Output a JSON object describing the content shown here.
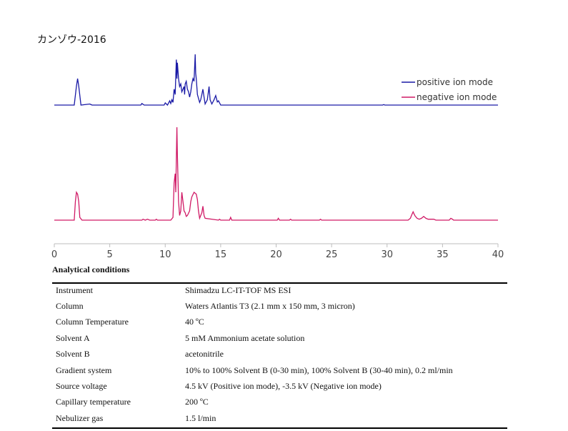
{
  "chart_data": {
    "type": "line",
    "title": "カンゾウ-2016",
    "xlabel": "",
    "ylabel": "",
    "xlim": [
      0,
      40
    ],
    "xticks": [
      0,
      5,
      10,
      15,
      20,
      25,
      30,
      35,
      40
    ],
    "grid": false,
    "legend": "top-right",
    "series": [
      {
        "name": "positive ion mode",
        "color": "#1a1aa6",
        "points": [
          [
            0,
            0
          ],
          [
            1.8,
            0
          ],
          [
            2.0,
            0.36
          ],
          [
            2.1,
            0.5
          ],
          [
            2.2,
            0.36
          ],
          [
            2.4,
            0
          ],
          [
            3.2,
            0.02
          ],
          [
            3.4,
            0
          ],
          [
            7.8,
            0
          ],
          [
            7.9,
            0.03
          ],
          [
            8.1,
            0
          ],
          [
            9.9,
            0
          ],
          [
            10.0,
            0.04
          ],
          [
            10.2,
            0
          ],
          [
            10.4,
            0.08
          ],
          [
            10.5,
            0.03
          ],
          [
            10.6,
            0.1
          ],
          [
            10.7,
            0.05
          ],
          [
            10.8,
            0.3
          ],
          [
            10.9,
            0.2
          ],
          [
            11.0,
            0.86
          ],
          [
            11.05,
            0.5
          ],
          [
            11.1,
            0.8
          ],
          [
            11.2,
            0.5
          ],
          [
            11.3,
            0.35
          ],
          [
            11.4,
            0.4
          ],
          [
            11.5,
            0.25
          ],
          [
            11.6,
            0.3
          ],
          [
            11.7,
            0.35
          ],
          [
            11.75,
            0.2
          ],
          [
            11.8,
            0.4
          ],
          [
            11.9,
            0.45
          ],
          [
            12.0,
            0.3
          ],
          [
            12.1,
            0.25
          ],
          [
            12.2,
            0.15
          ],
          [
            12.3,
            0.25
          ],
          [
            12.4,
            0.4
          ],
          [
            12.5,
            0.5
          ],
          [
            12.6,
            0.45
          ],
          [
            12.7,
            0.96
          ],
          [
            12.75,
            0.6
          ],
          [
            12.8,
            0.5
          ],
          [
            12.9,
            0.2
          ],
          [
            13.1,
            0.05
          ],
          [
            13.2,
            0.1
          ],
          [
            13.3,
            0.2
          ],
          [
            13.4,
            0.3
          ],
          [
            13.5,
            0.15
          ],
          [
            13.6,
            0.02
          ],
          [
            13.8,
            0.1
          ],
          [
            13.95,
            0.35
          ],
          [
            14.05,
            0.1
          ],
          [
            14.2,
            0.02
          ],
          [
            14.4,
            0.1
          ],
          [
            14.55,
            0.18
          ],
          [
            14.7,
            0.06
          ],
          [
            14.8,
            0.08
          ],
          [
            15.0,
            0
          ],
          [
            29.6,
            0
          ],
          [
            29.7,
            0.01
          ],
          [
            29.8,
            0
          ],
          [
            40,
            0
          ]
        ]
      },
      {
        "name": "negative ion mode",
        "color": "#d01a66",
        "points": [
          [
            0,
            0
          ],
          [
            1.8,
            0
          ],
          [
            1.9,
            0.2
          ],
          [
            2.0,
            0.3
          ],
          [
            2.1,
            0.28
          ],
          [
            2.2,
            0.2
          ],
          [
            2.3,
            0.03
          ],
          [
            2.5,
            0
          ],
          [
            7.9,
            0
          ],
          [
            8.0,
            0.01
          ],
          [
            8.2,
            0
          ],
          [
            8.4,
            0.01
          ],
          [
            8.6,
            0
          ],
          [
            9.1,
            0
          ],
          [
            9.2,
            0.01
          ],
          [
            9.3,
            0
          ],
          [
            10.5,
            0
          ],
          [
            10.7,
            0.03
          ],
          [
            10.8,
            0.4
          ],
          [
            10.9,
            0.5
          ],
          [
            10.95,
            0.3
          ],
          [
            11.0,
            0.65
          ],
          [
            11.05,
            1.0
          ],
          [
            11.1,
            0.7
          ],
          [
            11.2,
            0.2
          ],
          [
            11.3,
            0.05
          ],
          [
            11.4,
            0.1
          ],
          [
            11.5,
            0.3
          ],
          [
            11.6,
            0.2
          ],
          [
            11.7,
            0.1
          ],
          [
            11.8,
            0.08
          ],
          [
            11.9,
            0.04
          ],
          [
            12.0,
            0.05
          ],
          [
            12.2,
            0.1
          ],
          [
            12.3,
            0.2
          ],
          [
            12.4,
            0.25
          ],
          [
            12.6,
            0.3
          ],
          [
            12.8,
            0.28
          ],
          [
            12.9,
            0.22
          ],
          [
            13.0,
            0.1
          ],
          [
            13.1,
            0.02
          ],
          [
            13.3,
            0.08
          ],
          [
            13.4,
            0.15
          ],
          [
            13.5,
            0.05
          ],
          [
            13.6,
            0.02
          ],
          [
            14.8,
            0
          ],
          [
            14.9,
            0.01
          ],
          [
            15.0,
            0
          ],
          [
            15.8,
            0
          ],
          [
            15.9,
            0.03
          ],
          [
            16.0,
            0
          ],
          [
            20.1,
            0
          ],
          [
            20.2,
            0.02
          ],
          [
            20.3,
            0
          ],
          [
            21.2,
            0
          ],
          [
            21.3,
            0.01
          ],
          [
            21.4,
            0
          ],
          [
            23.9,
            0
          ],
          [
            24.0,
            0.01
          ],
          [
            24.1,
            0
          ],
          [
            31.9,
            0
          ],
          [
            32.1,
            0.02
          ],
          [
            32.2,
            0.05
          ],
          [
            32.35,
            0.09
          ],
          [
            32.5,
            0.05
          ],
          [
            32.7,
            0.02
          ],
          [
            32.9,
            0.01
          ],
          [
            33.1,
            0.02
          ],
          [
            33.3,
            0.04
          ],
          [
            33.5,
            0.02
          ],
          [
            33.7,
            0.01
          ],
          [
            34.2,
            0.01
          ],
          [
            34.4,
            0
          ],
          [
            35.6,
            0
          ],
          [
            35.75,
            0.02
          ],
          [
            35.9,
            0.01
          ],
          [
            36.0,
            0
          ],
          [
            40,
            0
          ]
        ]
      }
    ]
  },
  "analytical_conditions": {
    "title": "Analytical conditions",
    "rows": [
      {
        "key": "Instrument",
        "value": "Shimadzu LC-IT-TOF MS ESI"
      },
      {
        "key": "Column",
        "value": "Waters Atlantis T3 (2.1 mm x 150 mm, 3 micron)"
      },
      {
        "key": "Column Temperature",
        "value": "40 ºC"
      },
      {
        "key": "Solvent A",
        "value": "5 mM Ammonium acetate solution"
      },
      {
        "key": "Solvent B",
        "value": "acetonitrile"
      },
      {
        "key": "Gradient system",
        "value": "10% to 100% Solvent B (0-30 min), 100% Solvent B (30-40 min), 0.2 ml/min"
      },
      {
        "key": "Source voltage",
        "value": "4.5 kV (Positive ion mode), -3.5 kV (Negative ion mode)"
      },
      {
        "key": "Capillary temperature",
        "value": "200 ºC"
      },
      {
        "key": "Nebulizer gas",
        "value": "1.5 l/min"
      }
    ]
  }
}
